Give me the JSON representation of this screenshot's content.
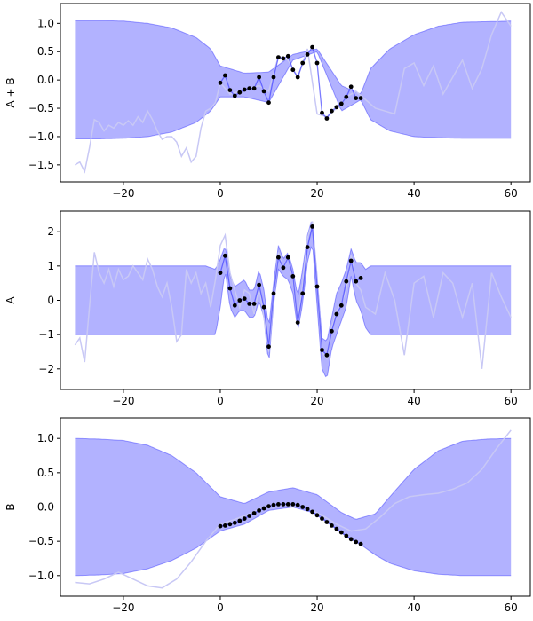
{
  "chart_data": [
    {
      "type": "line",
      "ylabel": "A + B",
      "xlabel": "",
      "xlim": [
        -33,
        64
      ],
      "ylim": [
        -1.8,
        1.35
      ],
      "xticks": [
        -20,
        0,
        20,
        40,
        60
      ],
      "xtick_labels": [
        "−20",
        "0",
        "20",
        "40",
        "60"
      ],
      "yticks": [
        -1.5,
        -1.0,
        -0.5,
        0.0,
        0.5,
        1.0
      ],
      "ytick_labels": [
        "−1.5",
        "−1.0",
        "−0.5",
        "0.0",
        "0.5",
        "1.0"
      ],
      "grid": false,
      "band": {
        "x": [
          -30,
          -25,
          -20,
          -15,
          -10,
          -5,
          -2,
          0,
          5,
          10,
          15,
          20,
          25,
          29,
          31,
          35,
          40,
          45,
          50,
          55,
          60
        ],
        "upper": [
          1.05,
          1.05,
          1.04,
          1.0,
          0.92,
          0.75,
          0.55,
          0.25,
          0.12,
          0.14,
          0.45,
          0.55,
          -0.1,
          -0.25,
          0.2,
          0.55,
          0.8,
          0.95,
          1.02,
          1.03,
          1.04
        ],
        "lower": [
          -1.04,
          -1.04,
          -1.03,
          -1.0,
          -0.92,
          -0.75,
          -0.55,
          -0.3,
          -0.3,
          -0.4,
          0.35,
          0.5,
          -0.55,
          -0.35,
          -0.7,
          -0.9,
          -1.0,
          -1.02,
          -1.03,
          -1.03,
          -1.03
        ]
      },
      "sample": {
        "x": [
          -30,
          -29,
          -28,
          -27,
          -26,
          -25,
          -24,
          -23,
          -22,
          -21,
          -20,
          -19,
          -18,
          -17,
          -16,
          -15,
          -14,
          -13,
          -12,
          -11,
          -10,
          -9,
          -8,
          -7,
          -6,
          -5,
          -4,
          -3,
          -2,
          -1,
          0,
          2,
          4,
          6,
          8,
          10,
          12,
          14,
          16,
          18,
          20,
          22,
          24,
          26,
          28,
          30,
          32,
          34,
          36,
          38,
          40,
          42,
          44,
          46,
          48,
          50,
          52,
          54,
          56,
          58,
          60
        ],
        "y": [
          -1.5,
          -1.45,
          -1.62,
          -1.2,
          -0.7,
          -0.75,
          -0.9,
          -0.8,
          -0.85,
          -0.75,
          -0.8,
          -0.72,
          -0.8,
          -0.65,
          -0.75,
          -0.55,
          -0.7,
          -0.9,
          -1.05,
          -1.0,
          -1.0,
          -1.1,
          -1.35,
          -1.2,
          -1.45,
          -1.35,
          -0.85,
          -0.55,
          -0.5,
          -0.4,
          -0.05,
          -0.25,
          -0.2,
          -0.15,
          -0.1,
          -0.2,
          0.42,
          0.35,
          0.05,
          0.55,
          -0.6,
          -0.65,
          -0.5,
          -0.3,
          -0.2,
          -0.35,
          -0.5,
          -0.55,
          -0.6,
          0.2,
          0.3,
          -0.1,
          0.25,
          -0.25,
          0.05,
          0.35,
          -0.15,
          0.2,
          0.8,
          1.2,
          0.95
        ]
      },
      "mean": {
        "x": [
          0,
          1,
          2,
          3,
          4,
          5,
          6,
          7,
          8,
          9,
          10,
          11,
          12,
          13,
          14,
          15,
          16,
          17,
          18,
          19,
          20,
          21,
          22,
          23,
          24,
          25,
          26,
          27,
          28,
          29
        ],
        "y": [
          -0.05,
          0.08,
          -0.18,
          -0.28,
          -0.22,
          -0.17,
          -0.15,
          -0.15,
          0.05,
          -0.2,
          -0.4,
          0.05,
          0.4,
          0.38,
          0.42,
          0.18,
          0.05,
          0.3,
          0.45,
          0.58,
          0.3,
          -0.58,
          -0.68,
          -0.55,
          -0.48,
          -0.42,
          -0.3,
          -0.12,
          -0.32,
          -0.32
        ]
      },
      "points": {
        "x": [
          0,
          1,
          2,
          3,
          4,
          5,
          6,
          7,
          8,
          9,
          10,
          11,
          12,
          13,
          14,
          15,
          16,
          17,
          18,
          19,
          20,
          21,
          22,
          23,
          24,
          25,
          26,
          27,
          28,
          29
        ],
        "y": [
          -0.05,
          0.08,
          -0.18,
          -0.28,
          -0.22,
          -0.17,
          -0.15,
          -0.15,
          0.05,
          -0.2,
          -0.4,
          0.05,
          0.4,
          0.38,
          0.42,
          0.18,
          0.05,
          0.3,
          0.45,
          0.58,
          0.3,
          -0.58,
          -0.68,
          -0.55,
          -0.48,
          -0.42,
          -0.3,
          -0.12,
          -0.32,
          -0.32
        ]
      }
    },
    {
      "type": "line",
      "ylabel": "A",
      "xlabel": "",
      "xlim": [
        -33,
        64
      ],
      "ylim": [
        -2.6,
        2.6
      ],
      "xticks": [
        -20,
        0,
        20,
        40,
        60
      ],
      "xtick_labels": [
        "−20",
        "0",
        "20",
        "40",
        "60"
      ],
      "yticks": [
        -2,
        -1,
        0,
        1,
        2
      ],
      "ytick_labels": [
        "−2",
        "−1",
        "0",
        "1",
        "2"
      ],
      "grid": false,
      "band": {
        "x": [
          -30,
          -10,
          -3,
          -1,
          0,
          1,
          2,
          3,
          4,
          5,
          6,
          7,
          8,
          9,
          10,
          11,
          12,
          13,
          14,
          15,
          16,
          17,
          18,
          19,
          20,
          21,
          22,
          23,
          24,
          25,
          26,
          27,
          28,
          29,
          30,
          31,
          35,
          60
        ],
        "upper": [
          1.0,
          1.0,
          1.0,
          0.9,
          1.2,
          1.6,
          0.7,
          0.4,
          0.5,
          0.6,
          0.3,
          0.3,
          0.9,
          0.3,
          -0.8,
          0.5,
          1.6,
          1.2,
          1.4,
          0.9,
          0.1,
          0.9,
          1.9,
          2.4,
          0.7,
          -1.1,
          -1.2,
          -0.5,
          0.2,
          0.5,
          0.9,
          1.5,
          1.1,
          1.1,
          0.9,
          1.0,
          1.0,
          1.0
        ],
        "lower": [
          -1.0,
          -1.0,
          -1.0,
          -1.0,
          -0.2,
          0.9,
          -0.2,
          -0.5,
          -0.3,
          -0.3,
          -0.5,
          -0.5,
          0.0,
          -0.5,
          -1.9,
          -0.1,
          0.9,
          0.7,
          0.6,
          0.2,
          -0.9,
          -0.1,
          1.1,
          1.7,
          -0.2,
          -2.0,
          -2.3,
          -1.4,
          -1.0,
          -0.6,
          -0.2,
          0.7,
          0.0,
          -0.3,
          -0.8,
          -1.0,
          -1.0,
          -1.0
        ]
      },
      "sample": {
        "x": [
          -30,
          -29,
          -28,
          -27,
          -26,
          -25,
          -24,
          -23,
          -22,
          -21,
          -20,
          -19,
          -18,
          -17,
          -16,
          -15,
          -14,
          -13,
          -12,
          -11,
          -10,
          -9,
          -8,
          -7,
          -6,
          -5,
          -4,
          -3,
          -2,
          -1,
          0,
          1,
          2,
          3,
          4,
          5,
          6,
          7,
          8,
          9,
          10,
          11,
          12,
          13,
          14,
          15,
          16,
          17,
          18,
          19,
          20,
          21,
          22,
          23,
          24,
          25,
          26,
          27,
          28,
          29,
          30,
          32,
          34,
          36,
          38,
          40,
          42,
          44,
          46,
          48,
          50,
          52,
          54,
          56,
          58,
          60
        ],
        "y": [
          -1.3,
          -1.1,
          -1.8,
          -0.2,
          1.4,
          0.8,
          0.5,
          0.9,
          0.4,
          0.9,
          0.6,
          0.7,
          1.0,
          0.8,
          0.6,
          1.2,
          0.9,
          0.4,
          0.1,
          0.5,
          -0.2,
          -1.2,
          -1.0,
          0.9,
          0.5,
          0.8,
          0.2,
          0.5,
          -0.2,
          0.6,
          1.6,
          1.9,
          0.8,
          0.3,
          -0.2,
          0.3,
          0.2,
          -0.4,
          0.4,
          -0.5,
          -1.5,
          0.1,
          1.4,
          0.9,
          1.3,
          0.6,
          -0.6,
          0.5,
          1.8,
          2.3,
          0.5,
          -1.5,
          -1.7,
          -0.8,
          -0.3,
          -0.1,
          0.3,
          1.3,
          0.5,
          0.3,
          -0.2,
          -0.4,
          0.8,
          0.0,
          -1.6,
          0.5,
          0.7,
          -0.5,
          0.8,
          0.5,
          -0.5,
          0.5,
          -2.0,
          0.8,
          0.1,
          -0.5
        ]
      },
      "mean": {
        "x": [
          0,
          1,
          2,
          3,
          4,
          5,
          6,
          7,
          8,
          9,
          10,
          11,
          12,
          13,
          14,
          15,
          16,
          17,
          18,
          19,
          20,
          21,
          22,
          23,
          24,
          25,
          26,
          27,
          28,
          29
        ],
        "y": [
          0.8,
          1.3,
          0.35,
          -0.15,
          0.0,
          0.05,
          -0.1,
          -0.1,
          0.45,
          -0.2,
          -1.35,
          0.2,
          1.25,
          0.95,
          1.25,
          0.7,
          -0.65,
          0.2,
          1.55,
          2.15,
          0.4,
          -1.45,
          -1.6,
          -0.9,
          -0.4,
          -0.15,
          0.55,
          1.15,
          0.55,
          0.65
        ]
      },
      "points": {
        "x": [
          0,
          1,
          2,
          3,
          4,
          5,
          6,
          7,
          8,
          9,
          10,
          11,
          12,
          13,
          14,
          15,
          16,
          17,
          18,
          19,
          20,
          21,
          22,
          23,
          24,
          25,
          26,
          27,
          28,
          29
        ],
        "y": [
          0.8,
          1.3,
          0.35,
          -0.15,
          0.0,
          0.05,
          -0.1,
          -0.1,
          0.45,
          -0.2,
          -1.35,
          0.2,
          1.25,
          0.95,
          1.25,
          0.7,
          -0.65,
          0.2,
          1.55,
          2.15,
          0.4,
          -1.45,
          -1.6,
          -0.9,
          -0.4,
          -0.15,
          0.55,
          1.15,
          0.55,
          0.65
        ]
      }
    },
    {
      "type": "line",
      "ylabel": "B",
      "xlabel": "",
      "xlim": [
        -33,
        64
      ],
      "ylim": [
        -1.3,
        1.3
      ],
      "xticks": [
        -20,
        0,
        20,
        40,
        60
      ],
      "xtick_labels": [
        "−20",
        "0",
        "20",
        "40",
        "60"
      ],
      "yticks": [
        -1.0,
        -0.5,
        0.0,
        0.5,
        1.0
      ],
      "ytick_labels": [
        "−1.0",
        "−0.5",
        "0.0",
        "0.5",
        "1.0"
      ],
      "grid": false,
      "band": {
        "x": [
          -30,
          -25,
          -20,
          -15,
          -10,
          -5,
          0,
          5,
          10,
          15,
          20,
          25,
          28,
          32,
          35,
          40,
          45,
          50,
          55,
          60
        ],
        "upper": [
          1.0,
          0.99,
          0.97,
          0.9,
          0.75,
          0.5,
          0.15,
          0.05,
          0.22,
          0.28,
          0.18,
          -0.08,
          -0.18,
          -0.1,
          0.15,
          0.55,
          0.82,
          0.96,
          0.99,
          1.0
        ],
        "lower": [
          -1.0,
          -0.99,
          -0.97,
          -0.9,
          -0.78,
          -0.6,
          -0.35,
          -0.25,
          -0.05,
          -0.0,
          -0.1,
          -0.38,
          -0.5,
          -0.7,
          -0.82,
          -0.93,
          -0.98,
          -1.0,
          -1.0,
          -1.0
        ]
      },
      "sample": {
        "x": [
          -30,
          -27,
          -24,
          -21,
          -18,
          -15,
          -12,
          -9,
          -6,
          -3,
          0,
          3,
          6,
          9,
          12,
          15,
          18,
          21,
          24,
          27,
          30,
          33,
          36,
          39,
          42,
          45,
          48,
          51,
          54,
          57,
          60
        ],
        "y": [
          -1.1,
          -1.12,
          -1.05,
          -0.95,
          -1.05,
          -1.15,
          -1.18,
          -1.05,
          -0.8,
          -0.5,
          -0.25,
          -0.18,
          -0.1,
          0.0,
          0.04,
          0.03,
          -0.02,
          -0.12,
          -0.25,
          -0.35,
          -0.32,
          -0.15,
          0.05,
          0.15,
          0.18,
          0.2,
          0.26,
          0.35,
          0.55,
          0.85,
          1.12
        ]
      },
      "mean": {
        "x": [
          0,
          1,
          2,
          3,
          4,
          5,
          6,
          7,
          8,
          9,
          10,
          11,
          12,
          13,
          14,
          15,
          16,
          17,
          18,
          19,
          20,
          21,
          22,
          23,
          24,
          25,
          26,
          27,
          28,
          29
        ],
        "y": [
          -0.28,
          -0.27,
          -0.25,
          -0.23,
          -0.2,
          -0.17,
          -0.13,
          -0.09,
          -0.05,
          -0.02,
          0.01,
          0.03,
          0.04,
          0.04,
          0.04,
          0.04,
          0.03,
          0.0,
          -0.03,
          -0.07,
          -0.12,
          -0.17,
          -0.22,
          -0.27,
          -0.32,
          -0.37,
          -0.42,
          -0.47,
          -0.51,
          -0.54
        ]
      },
      "points": {
        "x": [
          0,
          1,
          2,
          3,
          4,
          5,
          6,
          7,
          8,
          9,
          10,
          11,
          12,
          13,
          14,
          15,
          16,
          17,
          18,
          19,
          20,
          21,
          22,
          23,
          24,
          25,
          26,
          27,
          28,
          29
        ],
        "y": [
          -0.28,
          -0.27,
          -0.25,
          -0.23,
          -0.2,
          -0.17,
          -0.13,
          -0.09,
          -0.05,
          -0.02,
          0.01,
          0.03,
          0.04,
          0.04,
          0.04,
          0.04,
          0.03,
          0.0,
          -0.03,
          -0.07,
          -0.12,
          -0.17,
          -0.22,
          -0.27,
          -0.32,
          -0.37,
          -0.42,
          -0.47,
          -0.51,
          -0.54
        ]
      }
    }
  ],
  "colors": {
    "band_fill": "#0000ff",
    "band_edge": "#0000ff",
    "mean_line": "#4444ff",
    "sample_line": "#c8c8f5",
    "points": "#000000"
  }
}
